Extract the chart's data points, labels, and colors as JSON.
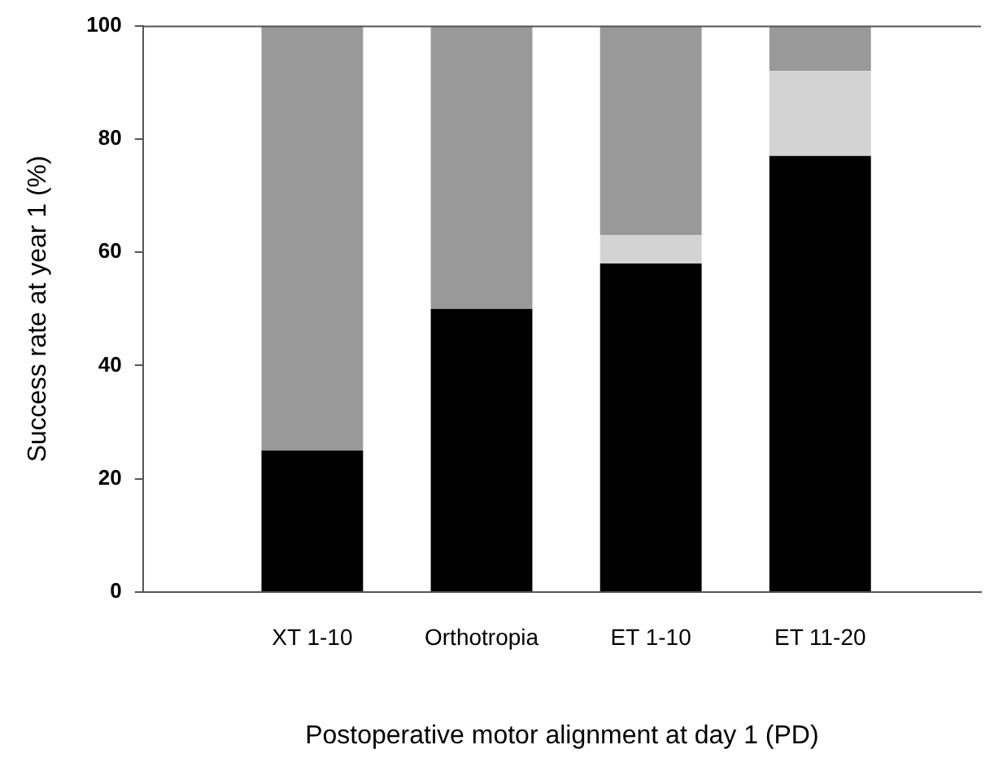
{
  "chart_data": {
    "type": "bar",
    "stacked": true,
    "xlabel": "Postoperative motor alignment at day 1 (PD)",
    "ylabel": "Success rate at year 1 (%)",
    "categories": [
      "XT 1-10",
      "Orthotropia",
      "ET 1-10",
      "ET 11-20"
    ],
    "series": [
      {
        "color": "#000000",
        "values": [
          25,
          50,
          58,
          77
        ]
      },
      {
        "color": "#d3d3d3",
        "values": [
          0,
          0,
          5,
          15
        ]
      },
      {
        "color": "#999999",
        "values": [
          75,
          50,
          37,
          8
        ]
      }
    ],
    "ylim": [
      0,
      100
    ],
    "yticks": [
      0,
      20,
      40,
      60,
      80,
      100
    ],
    "grid": false,
    "legend": false
  }
}
